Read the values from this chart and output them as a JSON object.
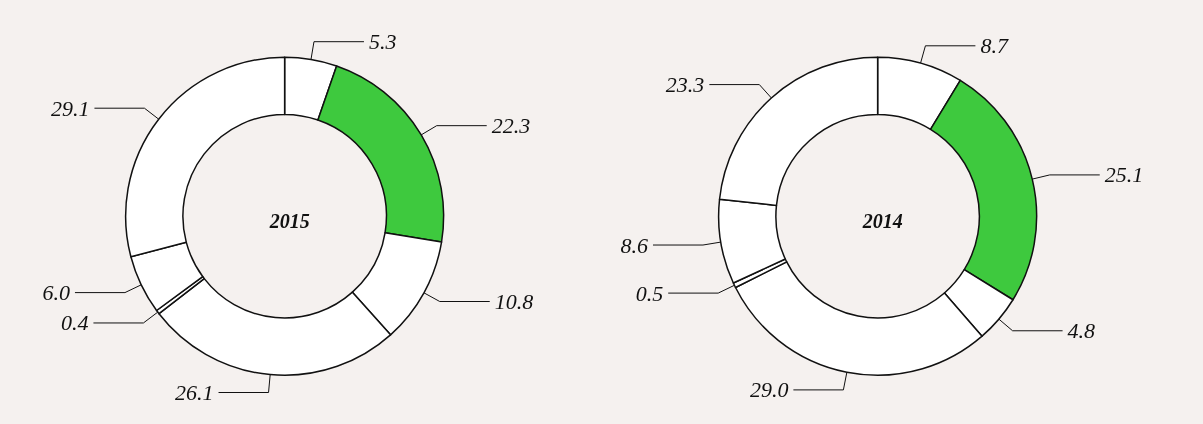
{
  "chart_data": [
    {
      "type": "donut",
      "title": "2015",
      "categories": [
        null,
        null,
        null,
        null,
        null,
        null,
        null
      ],
      "values": [
        5.3,
        22.3,
        10.8,
        26.1,
        0.4,
        6.0,
        29.1
      ],
      "value_labels": [
        "5.3",
        "22.3",
        "10.8",
        "26.1",
        "0.4",
        "6.0",
        "29.1"
      ],
      "colors": [
        "#ffffff",
        "#3ec93e",
        "#ffffff",
        "#ffffff",
        "#ffffff",
        "#ffffff",
        "#ffffff"
      ]
    },
    {
      "type": "donut",
      "title": "2014",
      "categories": [
        null,
        null,
        null,
        null,
        null,
        null,
        null
      ],
      "values": [
        8.7,
        25.1,
        4.8,
        29.0,
        0.5,
        8.6,
        23.3
      ],
      "value_labels": [
        "8.7",
        "25.1",
        "4.8",
        "29.0",
        "0.5",
        "8.6",
        "23.3"
      ],
      "colors": [
        "#ffffff",
        "#3ec93e",
        "#ffffff",
        "#ffffff",
        "#ffffff",
        "#ffffff",
        "#ffffff"
      ]
    }
  ]
}
